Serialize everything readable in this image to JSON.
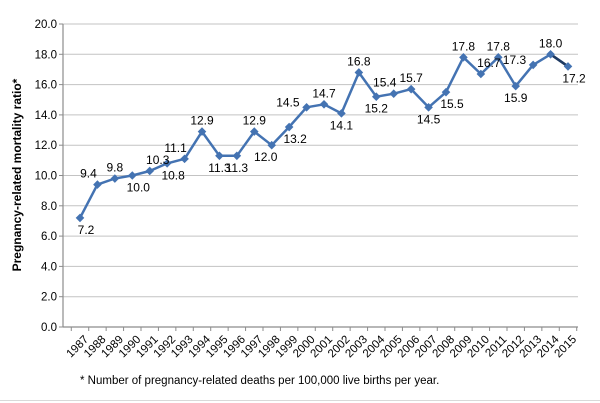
{
  "chart_data": {
    "type": "line",
    "title": "",
    "xlabel": "",
    "ylabel": "Pregnancy-related mortality ratio*",
    "footnote": "* Number of pregnancy-related deaths per 100,000 live births per year.",
    "categories": [
      "1987",
      "1988",
      "1989",
      "1990",
      "1991",
      "1992",
      "1993",
      "1994",
      "1995",
      "1996",
      "1997",
      "1998",
      "1999",
      "2000",
      "2001",
      "2002",
      "2003",
      "2004",
      "2005",
      "2006",
      "2007",
      "2008",
      "2009",
      "2010",
      "2011",
      "2012",
      "2013",
      "2014",
      "2015"
    ],
    "series": [
      {
        "name": "Pregnancy-related mortality ratio",
        "values": [
          7.2,
          9.4,
          9.8,
          10.0,
          10.3,
          10.8,
          11.1,
          12.9,
          11.3,
          11.3,
          12.9,
          12.0,
          13.2,
          14.5,
          14.7,
          14.1,
          16.8,
          15.2,
          15.4,
          15.7,
          14.5,
          15.5,
          17.8,
          16.7,
          17.8,
          15.9,
          17.3,
          18.0,
          17.2
        ]
      }
    ],
    "ylim": [
      0,
      20
    ],
    "ytick_step": 2,
    "ytick_decimals": 1,
    "grid": "horizontal",
    "legend": "none",
    "data_labels": true,
    "label_placements": [
      "below-right",
      "above-left",
      "above",
      "below-right",
      "above-right",
      "below-right",
      "above-left",
      "above",
      "below",
      "below",
      "above",
      "below-left",
      "below-right",
      "left-above",
      "above",
      "below",
      "above",
      "below",
      "above-left",
      "above",
      "below",
      "below-right",
      "above",
      "above-right",
      "above",
      "below",
      "left-above",
      "above",
      "below-right"
    ],
    "marker": "diamond",
    "colors": {
      "line": "#4473b2",
      "final_segment": "#1f3a61",
      "marker": "#4473b2",
      "gridline": "#c3c3c3",
      "axis": "#8c8c8c",
      "text": "#000000",
      "background": "#ffffff"
    }
  }
}
